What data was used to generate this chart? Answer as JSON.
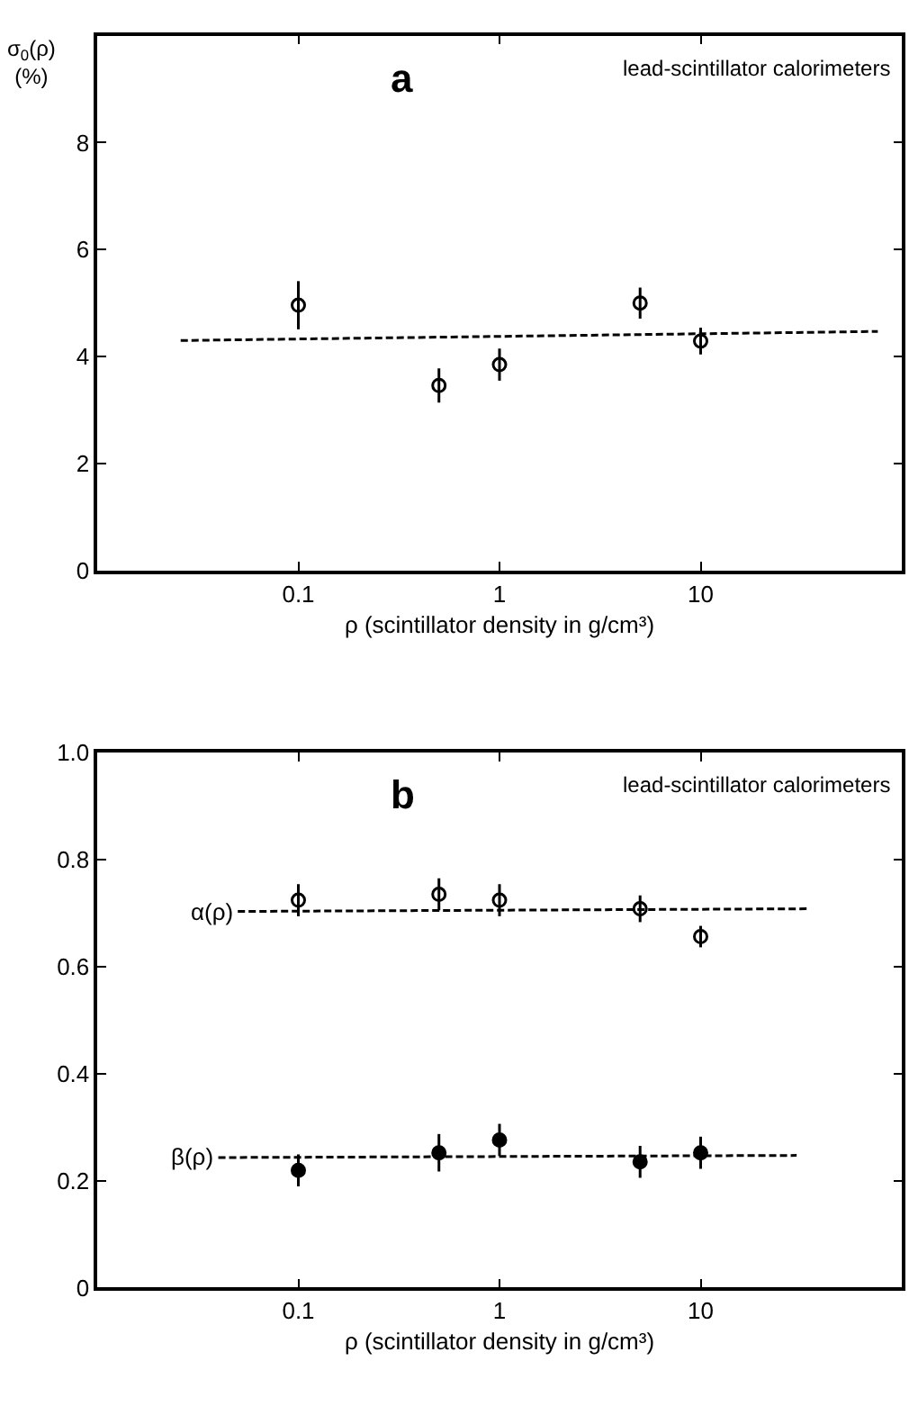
{
  "chart_data": [
    {
      "type": "scatter",
      "title": "a",
      "ylabel": "σ$_{0}$(ρ) (%)",
      "xlabel": "ρ (scintillator density in g/cm³)",
      "annotations": [
        "lead-scintillator calorimeters"
      ],
      "log": "x",
      "xlim": [
        0.01,
        100
      ],
      "xticks": [
        0.1,
        1,
        10
      ],
      "ylim": [
        0,
        10
      ],
      "yticks": [
        0,
        2,
        4,
        6,
        8
      ],
      "series": [
        {
          "marker": "circle-open",
          "color": "#000000",
          "x": [
            0.1,
            0.5,
            1,
            5,
            10
          ],
          "values": [
            4.96,
            3.46,
            3.85,
            5.0,
            4.29
          ],
          "errors": [
            0.45,
            0.32,
            0.3,
            0.29,
            0.25
          ]
        },
        {
          "type": "line",
          "line_style": "dashed",
          "color": "#000000",
          "x": [
            0.026,
            76
          ],
          "values": [
            4.3,
            4.47
          ]
        }
      ]
    },
    {
      "type": "scatter",
      "title": "b",
      "xlabel": "ρ (scintillator density in g/cm³)",
      "annotations": [
        "lead-scintillator calorimeters"
      ],
      "log": "x",
      "xlim": [
        0.01,
        100
      ],
      "xticks": [
        0.1,
        1,
        10
      ],
      "ylim": [
        0,
        1
      ],
      "yticks": [
        0,
        0.2,
        0.4,
        0.6,
        0.8,
        {
          "value": 1,
          "label": "1.0"
        }
      ],
      "series": [
        {
          "marker": "circle-open",
          "color": "#000000",
          "x": [
            0.1,
            0.5,
            1,
            5,
            10
          ],
          "values": [
            0.724,
            0.735,
            0.724,
            0.708,
            0.656
          ],
          "errors": [
            0.03,
            0.03,
            0.03,
            0.025,
            0.02
          ]
        },
        {
          "type": "line",
          "name": "α(ρ)",
          "line_style": "dashed",
          "color": "#000000",
          "x": [
            0.05,
            35
          ],
          "values": [
            0.703,
            0.708
          ]
        },
        {
          "marker": "circle",
          "color": "#000000",
          "x": [
            0.1,
            0.5,
            1,
            5,
            10
          ],
          "values": [
            0.219,
            0.252,
            0.276,
            0.235,
            0.252
          ],
          "errors": [
            0.03,
            0.035,
            0.03,
            0.03,
            0.03
          ]
        },
        {
          "type": "line",
          "name": "β(ρ)",
          "line_style": "dashed",
          "color": "#000000",
          "x": [
            0.04,
            30
          ],
          "values": [
            0.243,
            0.247
          ]
        }
      ]
    }
  ]
}
